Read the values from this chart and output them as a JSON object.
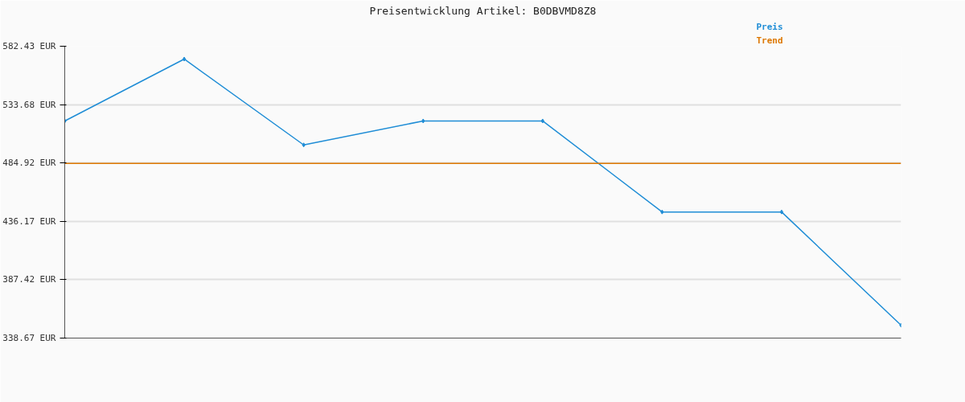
{
  "chart_data": {
    "type": "line",
    "title": "Preisentwicklung Artikel: B0DBVMD8Z8",
    "categories": [
      null,
      null,
      null,
      null,
      null,
      null,
      null,
      null
    ],
    "series": [
      {
        "name": "Preis",
        "color": "#1f8dd6",
        "values": [
          520.0,
          571.7,
          500.0,
          520.0,
          520.0,
          444.0,
          444.0,
          349.4
        ],
        "marker": "diamond"
      },
      {
        "name": "Trend",
        "color": "#dd7700",
        "values": [
          484.5,
          484.5,
          484.5,
          484.5,
          484.5,
          484.5,
          484.5,
          484.5
        ],
        "marker": "none"
      }
    ],
    "ylim": [
      338.67,
      582.43
    ],
    "yticks": [
      {
        "value": 338.67,
        "label": "338.67 EUR"
      },
      {
        "value": 387.42,
        "label": "387.42 EUR"
      },
      {
        "value": 436.17,
        "label": "436.17 EUR"
      },
      {
        "value": 484.92,
        "label": "484.92 EUR"
      },
      {
        "value": 533.68,
        "label": "533.68 EUR"
      },
      {
        "value": 582.43,
        "label": "582.43 EUR"
      }
    ],
    "grid": "y",
    "tick_labels": "y"
  }
}
